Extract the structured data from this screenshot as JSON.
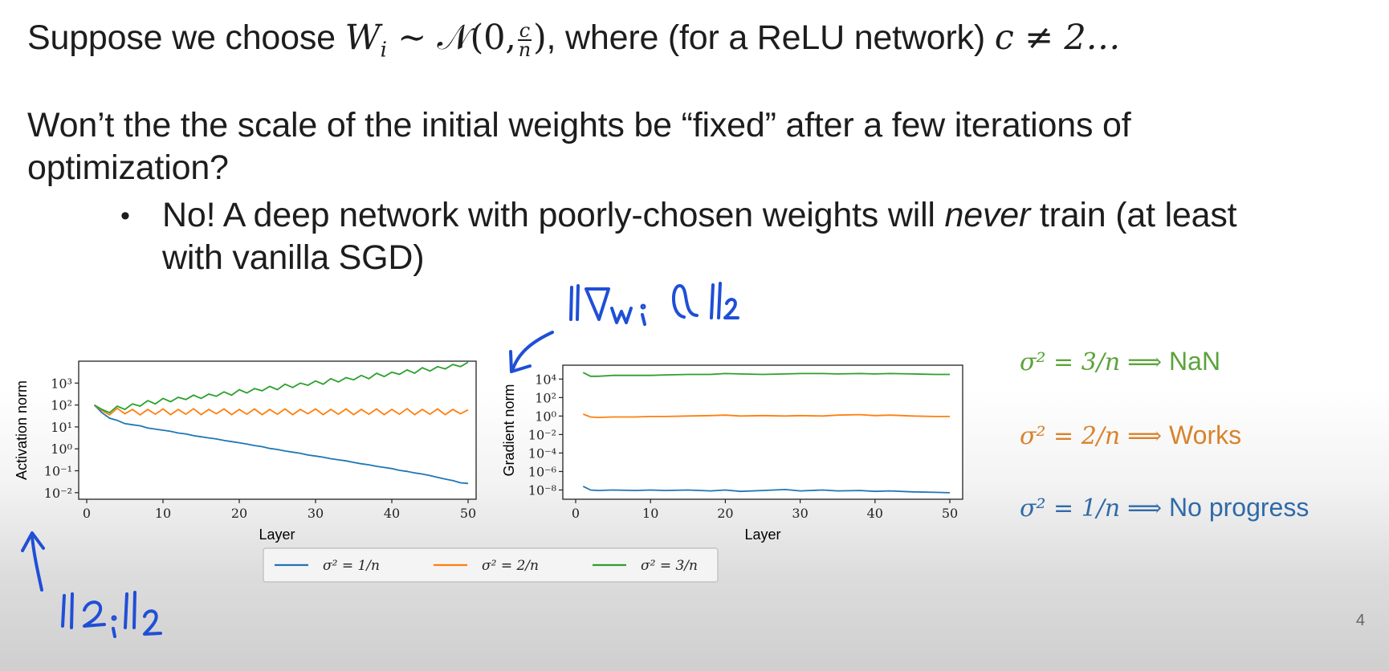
{
  "slide": {
    "line1_pre": "Suppose we choose",
    "line1_formula_a": "W",
    "line1_formula_sub": "i",
    "line1_formula_b": " ∼ 𝒩(0,",
    "line1_frac_num": "c",
    "line1_frac_den": "n",
    "line1_formula_c": ")",
    "line1_mid": ", where (for a ReLU network)",
    "line1_cond": "c ≠ 2…",
    "question_1": "Won’t the the scale of the initial weights be “fixed” after a few iterations of",
    "question_2": "optimization?",
    "bullet_1a": "No! A deep network with poorly-chosen weights will ",
    "bullet_1_em": "never",
    "bullet_1b": " train (at least",
    "bullet_2": "with vanilla SGD)",
    "page_number": "4"
  },
  "annotations": {
    "gradient_note": "‖∇wᵢ ℓ‖₂",
    "activation_note": "‖zᵢ‖₂",
    "ink_color": "#1f4fd6"
  },
  "outcomes": [
    {
      "lhs": "σ² = 3/n",
      "arrow": "⟹",
      "result": "NaN",
      "color": "#5ca33a"
    },
    {
      "lhs": "σ² = 2/n",
      "arrow": "⟹",
      "result": "Works",
      "color": "#d9822b"
    },
    {
      "lhs": "σ² = 1/n",
      "arrow": "⟹",
      "result": "No progress",
      "color": "#2f6aa8"
    }
  ],
  "chart_data": [
    {
      "type": "line",
      "xlabel": "Layer",
      "ylabel": "Activation norm",
      "yscale": "log",
      "xlim": [
        0,
        50
      ],
      "xticks": [
        0,
        10,
        20,
        30,
        40,
        50
      ],
      "yticks": [
        "10⁻²",
        "10⁻¹",
        "10⁰",
        "10¹",
        "10²",
        "10³"
      ],
      "ylim_exp": [
        -2.3,
        4.0
      ],
      "series": [
        {
          "name": "σ² = 1/n",
          "color": "#1f77b4",
          "x": [
            1,
            2,
            3,
            4,
            5,
            6,
            7,
            8,
            9,
            10,
            11,
            12,
            13,
            14,
            15,
            16,
            17,
            18,
            19,
            20,
            21,
            22,
            23,
            24,
            25,
            26,
            27,
            28,
            29,
            30,
            31,
            32,
            33,
            34,
            35,
            36,
            37,
            38,
            39,
            40,
            41,
            42,
            43,
            44,
            45,
            46,
            47,
            48,
            49,
            50
          ],
          "log10": [
            2.0,
            1.65,
            1.4,
            1.3,
            1.15,
            1.1,
            1.05,
            0.95,
            0.9,
            0.85,
            0.8,
            0.72,
            0.68,
            0.6,
            0.55,
            0.5,
            0.45,
            0.38,
            0.33,
            0.28,
            0.22,
            0.15,
            0.1,
            0.02,
            -0.03,
            -0.1,
            -0.15,
            -0.2,
            -0.28,
            -0.33,
            -0.38,
            -0.45,
            -0.5,
            -0.55,
            -0.62,
            -0.68,
            -0.73,
            -0.8,
            -0.85,
            -0.9,
            -0.98,
            -1.03,
            -1.1,
            -1.15,
            -1.22,
            -1.3,
            -1.38,
            -1.45,
            -1.55,
            -1.58
          ]
        },
        {
          "name": "σ² = 2/n",
          "color": "#ff7f0e",
          "x": [
            1,
            2,
            3,
            4,
            5,
            6,
            7,
            8,
            9,
            10,
            11,
            12,
            13,
            14,
            15,
            16,
            17,
            18,
            19,
            20,
            21,
            22,
            23,
            24,
            25,
            26,
            27,
            28,
            29,
            30,
            31,
            32,
            33,
            34,
            35,
            36,
            37,
            38,
            39,
            40,
            41,
            42,
            43,
            44,
            45,
            46,
            47,
            48,
            49,
            50
          ],
          "log10": [
            2.0,
            1.75,
            1.55,
            1.85,
            1.6,
            1.8,
            1.55,
            1.8,
            1.58,
            1.82,
            1.56,
            1.8,
            1.58,
            1.83,
            1.56,
            1.8,
            1.6,
            1.82,
            1.56,
            1.8,
            1.58,
            1.82,
            1.56,
            1.8,
            1.58,
            1.82,
            1.56,
            1.8,
            1.6,
            1.82,
            1.56,
            1.8,
            1.58,
            1.82,
            1.56,
            1.8,
            1.58,
            1.82,
            1.56,
            1.8,
            1.58,
            1.83,
            1.56,
            1.8,
            1.58,
            1.82,
            1.56,
            1.8,
            1.6,
            1.78
          ]
        },
        {
          "name": "σ² = 3/n",
          "color": "#2ca02c",
          "x": [
            1,
            2,
            3,
            4,
            5,
            6,
            7,
            8,
            9,
            10,
            11,
            12,
            13,
            14,
            15,
            16,
            17,
            18,
            19,
            20,
            21,
            22,
            23,
            24,
            25,
            26,
            27,
            28,
            29,
            30,
            31,
            32,
            33,
            34,
            35,
            36,
            37,
            38,
            39,
            40,
            41,
            42,
            43,
            44,
            45,
            46,
            47,
            48,
            49,
            50
          ],
          "log10": [
            2.0,
            1.8,
            1.65,
            1.95,
            1.8,
            2.05,
            1.95,
            2.2,
            2.05,
            2.3,
            2.15,
            2.35,
            2.25,
            2.45,
            2.3,
            2.5,
            2.4,
            2.6,
            2.45,
            2.7,
            2.55,
            2.75,
            2.65,
            2.85,
            2.7,
            2.95,
            2.8,
            3.0,
            2.9,
            3.1,
            2.95,
            3.2,
            3.05,
            3.25,
            3.15,
            3.35,
            3.2,
            3.45,
            3.3,
            3.5,
            3.4,
            3.6,
            3.45,
            3.7,
            3.55,
            3.75,
            3.65,
            3.85,
            3.75,
            3.95
          ]
        }
      ]
    },
    {
      "type": "line",
      "xlabel": "Layer",
      "ylabel": "Gradient norm",
      "yscale": "log",
      "xlim": [
        0,
        50
      ],
      "xticks": [
        0,
        10,
        20,
        30,
        40,
        50
      ],
      "yticks": [
        "10⁻⁸",
        "10⁻⁶",
        "10⁻⁴",
        "10⁻²",
        "10⁰",
        "10²",
        "10⁴"
      ],
      "ylim_exp": [
        -9.0,
        5.5
      ],
      "series": [
        {
          "name": "σ² = 1/n",
          "color": "#1f77b4",
          "x": [
            1,
            2,
            3,
            5,
            8,
            10,
            12,
            15,
            18,
            20,
            22,
            25,
            28,
            30,
            33,
            35,
            38,
            40,
            42,
            45,
            48,
            50
          ],
          "log10": [
            -7.6,
            -8.0,
            -8.05,
            -8.0,
            -8.05,
            -8.0,
            -8.05,
            -8.0,
            -8.1,
            -8.0,
            -8.15,
            -8.05,
            -7.95,
            -8.1,
            -8.0,
            -8.1,
            -8.05,
            -8.15,
            -8.1,
            -8.2,
            -8.25,
            -8.3
          ]
        },
        {
          "name": "σ² = 2/n",
          "color": "#ff7f0e",
          "x": [
            1,
            2,
            3,
            5,
            8,
            10,
            12,
            15,
            18,
            20,
            22,
            25,
            28,
            30,
            33,
            35,
            38,
            40,
            42,
            45,
            48,
            50
          ],
          "log10": [
            0.2,
            -0.1,
            -0.15,
            -0.1,
            -0.1,
            -0.05,
            -0.05,
            0.0,
            0.05,
            0.1,
            0.0,
            0.05,
            0.0,
            0.05,
            0.0,
            0.1,
            0.15,
            0.05,
            0.1,
            0.0,
            -0.05,
            -0.05
          ]
        },
        {
          "name": "σ² = 3/n",
          "color": "#2ca02c",
          "x": [
            1,
            2,
            3,
            5,
            8,
            10,
            12,
            15,
            18,
            20,
            22,
            25,
            28,
            30,
            33,
            35,
            38,
            40,
            42,
            45,
            48,
            50
          ],
          "log10": [
            4.7,
            4.3,
            4.3,
            4.4,
            4.4,
            4.4,
            4.45,
            4.5,
            4.5,
            4.6,
            4.55,
            4.5,
            4.55,
            4.6,
            4.6,
            4.55,
            4.6,
            4.55,
            4.6,
            4.55,
            4.5,
            4.5
          ]
        }
      ]
    }
  ]
}
